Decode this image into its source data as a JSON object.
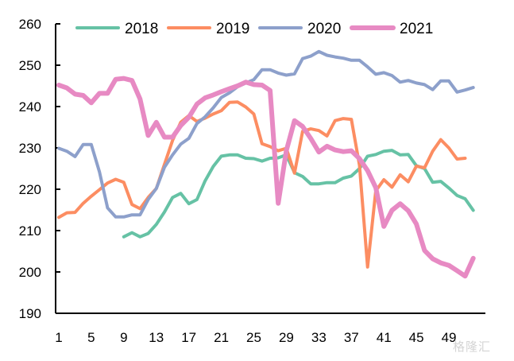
{
  "chart_data": {
    "type": "line",
    "title": "",
    "xlabel": "",
    "ylabel": "",
    "ylim": [
      190,
      260
    ],
    "yticks": [
      190,
      200,
      210,
      220,
      230,
      240,
      250,
      260
    ],
    "xlim": [
      1,
      52
    ],
    "xticks": [
      1,
      5,
      9,
      13,
      17,
      21,
      25,
      29,
      33,
      37,
      41,
      45,
      49
    ],
    "grid": false,
    "legend_position": "top",
    "series": [
      {
        "name": "2018",
        "color": "#66c2a5",
        "start_week": 9,
        "values": [
          208.5,
          209.5,
          208.5,
          209.3,
          211.5,
          214.5,
          218,
          219,
          216.5,
          217.5,
          222,
          225.5,
          228,
          228.3,
          228.3,
          227.5,
          227.4,
          226.8,
          227.5,
          227.6,
          228.3,
          224,
          223.1,
          221.3,
          221.3,
          221.6,
          221.6,
          222.7,
          223.2,
          225,
          228,
          228.4,
          229.2,
          229.4,
          228.3,
          228.4,
          225.7,
          225,
          221.7,
          221.9,
          220.3,
          218.5,
          217.7,
          214.9
        ]
      },
      {
        "name": "2019",
        "color": "#fc8d62",
        "start_week": 1,
        "values": [
          213.2,
          214.3,
          214.4,
          216.6,
          218.3,
          219.9,
          221.5,
          222.4,
          221.7,
          216.3,
          215.3,
          218,
          220.2,
          226,
          231.8,
          236.2,
          237.8,
          236.4,
          237.2,
          238.2,
          239,
          241,
          241.1,
          239.9,
          238.2,
          231,
          230.3,
          229.3,
          229.9,
          223.9,
          234,
          234.6,
          234.2,
          232.9,
          236.6,
          237.1,
          236.9,
          225.8,
          201.2,
          219.6,
          222.3,
          220.5,
          223.5,
          221.8,
          225.6,
          225.2,
          229.2,
          232,
          230,
          227.3,
          227.5
        ]
      },
      {
        "name": "2020",
        "color": "#8da0cb",
        "start_week": 1,
        "values": [
          229.9,
          229.2,
          227.9,
          230.8,
          230.8,
          224.2,
          215.5,
          213.3,
          213.3,
          213.8,
          213.8,
          217.5,
          220.2,
          225.3,
          228.3,
          230.9,
          232.3,
          235.9,
          237.5,
          239.7,
          242.2,
          243.3,
          244.8,
          245.7,
          246.5,
          248.9,
          248.9,
          248.1,
          247.6,
          247.9,
          251.6,
          252.2,
          253.3,
          252.4,
          252,
          251.7,
          251.2,
          251.2,
          249.6,
          247.8,
          248.2,
          247.5,
          245.9,
          246.3,
          245.7,
          245.3,
          244.1,
          246.2,
          246.2,
          243.5,
          244,
          244.6
        ]
      },
      {
        "name": "2021",
        "color": "#e78ac3",
        "start_week": 1,
        "values": [
          245.2,
          244.5,
          243,
          242.7,
          240.9,
          243.2,
          243.2,
          246.6,
          246.8,
          246.3,
          241.8,
          233,
          236.2,
          232.6,
          232.6,
          235.4,
          237.4,
          240.6,
          242.1,
          242.8,
          243.6,
          244.3,
          245,
          245.9,
          245.3,
          245.2,
          243.9,
          216.6,
          229.3,
          236.6,
          235.2,
          232.3,
          229,
          230.4,
          229.5,
          229.1,
          229.3,
          227.4,
          224.5,
          220.4,
          211,
          214.9,
          216.5,
          214.8,
          211.6,
          205.2,
          203.2,
          202.2,
          201.6,
          200.3,
          199,
          203.3
        ]
      }
    ]
  },
  "watermark": "格隆汇"
}
